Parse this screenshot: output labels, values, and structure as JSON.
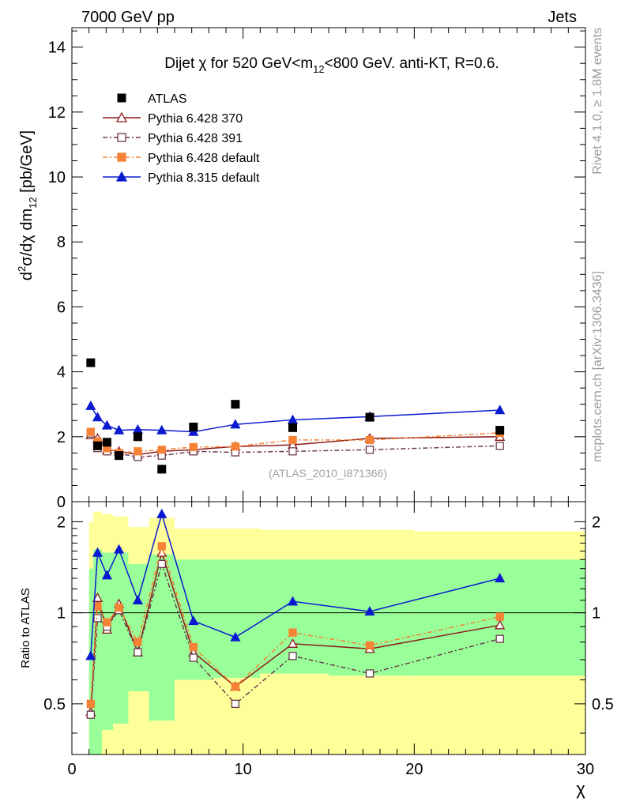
{
  "header": {
    "left": "7000 GeV pp",
    "right": "Jets",
    "side_top": "Rivet 4.1.0, ≥ 1.8M events",
    "side_bottom": "mcplots.cern.ch [arXiv:1306.3436]"
  },
  "chart_data": {
    "type": "line",
    "title_parts": {
      "pre": "Dijet ",
      "chi": "χ",
      "mid": " for 520 GeV<m",
      "sub": "12",
      "post": "<800 GeV.  anti-KT, R=0.6."
    },
    "ylabel_parts": {
      "d": "d",
      "sup": "2",
      "body": "σ/dχ dm",
      "sub": "12",
      "unit": " [pb/GeV]"
    },
    "ratio_ylabel": "Ratio to ATLAS",
    "xlabel": "χ",
    "analysis_tag": "(ATLAS_2010_I871366)",
    "xlim": [
      0,
      30
    ],
    "ylim_main": [
      0,
      14.6
    ],
    "ylim_ratio": [
      0.34,
      2.33
    ],
    "ratio_scale": "log",
    "main_yticks": [
      "0",
      "2",
      "4",
      "6",
      "8",
      "10",
      "12",
      "14"
    ],
    "xticks": [
      "0",
      "10",
      "20",
      "30"
    ],
    "ratio_yticks": [
      {
        "value": 0.5,
        "label": "0.5"
      },
      {
        "value": 1,
        "label": "1"
      },
      {
        "value": 2,
        "label": "2"
      }
    ],
    "x": [
      1.1,
      1.5,
      2.05,
      2.75,
      3.85,
      5.25,
      7.1,
      9.55,
      12.9,
      17.4,
      25.0
    ],
    "atlas": [
      4.28,
      1.72,
      1.83,
      1.42,
      2.0,
      1.0,
      2.3,
      3.0,
      2.28,
      2.6,
      2.2
    ],
    "legend": [
      {
        "key": "atlas",
        "label": "ATLAS"
      },
      {
        "key": "p370",
        "label": "Pythia 6.428 370"
      },
      {
        "key": "p391",
        "label": "Pythia 6.428 391"
      },
      {
        "key": "pdef",
        "label": "Pythia 6.428 default"
      },
      {
        "key": "p8",
        "label": "Pythia 8.315 default"
      }
    ],
    "series": [
      {
        "key": "p370",
        "name": "Pythia 6.428 370",
        "color": "#8b1a1a",
        "marker": "triangle-open",
        "dash": "",
        "values": [
          2.05,
          1.95,
          1.6,
          1.55,
          1.45,
          1.55,
          1.6,
          1.7,
          1.75,
          1.95,
          2.0
        ],
        "ratio": [
          0.47,
          1.12,
          0.88,
          1.07,
          0.74,
          1.58,
          0.74,
          0.57,
          0.79,
          0.76,
          0.91
        ]
      },
      {
        "key": "p391",
        "name": "Pythia 6.428 391",
        "color": "#6b3a4a",
        "marker": "square-open",
        "dash": "6,3,2,3",
        "values": [
          2.1,
          1.65,
          1.55,
          1.48,
          1.38,
          1.42,
          1.55,
          1.52,
          1.55,
          1.6,
          1.72
        ],
        "ratio": [
          0.46,
          0.96,
          0.9,
          1.02,
          0.74,
          1.45,
          0.71,
          0.5,
          0.72,
          0.63,
          0.82
        ]
      },
      {
        "key": "pdef",
        "name": "Pythia 6.428 default",
        "color": "#f58235",
        "marker": "square",
        "dash": "6,3,2,3",
        "values": [
          2.15,
          1.85,
          1.65,
          1.5,
          1.55,
          1.6,
          1.68,
          1.7,
          1.9,
          1.9,
          2.12
        ],
        "ratio": [
          0.5,
          1.05,
          0.93,
          1.04,
          0.8,
          1.66,
          0.77,
          0.57,
          0.86,
          0.78,
          0.97
        ]
      },
      {
        "key": "p8",
        "name": "Pythia 8.315 default",
        "color": "#0a1ad0",
        "marker": "triangle",
        "dash": "",
        "values": [
          2.95,
          2.6,
          2.35,
          2.2,
          2.22,
          2.2,
          2.15,
          2.38,
          2.52,
          2.62,
          2.82
        ],
        "ratio": [
          0.72,
          1.58,
          1.33,
          1.62,
          1.1,
          2.12,
          0.94,
          0.83,
          1.09,
          1.01,
          1.3
        ]
      }
    ],
    "error_bands": {
      "outer": [
        {
          "x0": 1.0,
          "x1": 1.25,
          "lo": 0.34,
          "hi": 2.0
        },
        {
          "x0": 1.25,
          "x1": 1.75,
          "lo": 0.34,
          "hi": 2.16
        },
        {
          "x0": 1.75,
          "x1": 2.4,
          "lo": 0.34,
          "hi": 2.12
        },
        {
          "x0": 2.4,
          "x1": 3.3,
          "lo": 0.34,
          "hi": 2.08
        },
        {
          "x0": 3.3,
          "x1": 4.5,
          "lo": 0.34,
          "hi": 1.92
        },
        {
          "x0": 4.5,
          "x1": 6.0,
          "lo": 0.34,
          "hi": 2.06
        },
        {
          "x0": 6.0,
          "x1": 8.2,
          "lo": 0.34,
          "hi": 1.9
        },
        {
          "x0": 8.2,
          "x1": 11.0,
          "lo": 0.34,
          "hi": 1.9
        },
        {
          "x0": 11.0,
          "x1": 15.0,
          "lo": 0.34,
          "hi": 1.88
        },
        {
          "x0": 15.0,
          "x1": 20.0,
          "lo": 0.34,
          "hi": 1.88
        },
        {
          "x0": 20.0,
          "x1": 30.0,
          "lo": 0.34,
          "hi": 1.86
        }
      ],
      "inner": [
        {
          "x0": 1.0,
          "x1": 1.25,
          "lo": 0.34,
          "hi": 1.4
        },
        {
          "x0": 1.25,
          "x1": 1.75,
          "lo": 0.34,
          "hi": 1.62
        },
        {
          "x0": 1.75,
          "x1": 2.4,
          "lo": 0.41,
          "hi": 1.58
        },
        {
          "x0": 2.4,
          "x1": 3.3,
          "lo": 0.43,
          "hi": 1.58
        },
        {
          "x0": 3.3,
          "x1": 4.5,
          "lo": 0.55,
          "hi": 1.45
        },
        {
          "x0": 4.5,
          "x1": 6.0,
          "lo": 0.44,
          "hi": 1.56
        },
        {
          "x0": 6.0,
          "x1": 8.2,
          "lo": 0.6,
          "hi": 1.5
        },
        {
          "x0": 8.2,
          "x1": 11.0,
          "lo": 0.61,
          "hi": 1.5
        },
        {
          "x0": 11.0,
          "x1": 15.0,
          "lo": 0.63,
          "hi": 1.5
        },
        {
          "x0": 15.0,
          "x1": 20.0,
          "lo": 0.62,
          "hi": 1.5
        },
        {
          "x0": 20.0,
          "x1": 30.0,
          "lo": 0.62,
          "hi": 1.5
        }
      ]
    },
    "colors": {
      "band_outer": "#ffff99",
      "band_inner": "#99ff99",
      "data": "#000000",
      "side_text": "#9a9a9a",
      "tag_text": "#a0a0a0"
    }
  }
}
